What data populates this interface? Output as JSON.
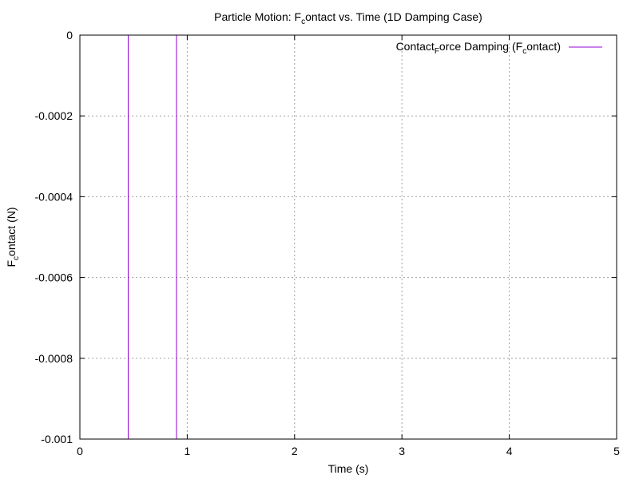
{
  "chart_data": {
    "type": "line",
    "title": {
      "pre": "Particle Motion: F",
      "sub": "c",
      "post": "ontact vs. Time (1D Damping Case)"
    },
    "xlabel": "Time (s)",
    "ylabel": {
      "pre": "F",
      "sub": "c",
      "post": "ontact (N)"
    },
    "xlim": [
      0,
      5
    ],
    "ylim": [
      -0.001,
      0
    ],
    "x_ticks": [
      {
        "value": 0,
        "label": "0"
      },
      {
        "value": 1,
        "label": "1"
      },
      {
        "value": 2,
        "label": "2"
      },
      {
        "value": 3,
        "label": "3"
      },
      {
        "value": 4,
        "label": "4"
      },
      {
        "value": 5,
        "label": "5"
      }
    ],
    "y_ticks": [
      {
        "value": 0,
        "label": "0"
      },
      {
        "value": -0.0002,
        "label": "-0.0002"
      },
      {
        "value": -0.0004,
        "label": "-0.0004"
      },
      {
        "value": -0.0006,
        "label": "-0.0006"
      },
      {
        "value": -0.0008,
        "label": "-0.0008"
      },
      {
        "value": -0.001,
        "label": "-0.001"
      }
    ],
    "grid": true,
    "legend_position": "top-right",
    "series": [
      {
        "legend": {
          "part1": "Contact",
          "sub1": "F",
          "part2": "orce Damping (F",
          "sub2": "c",
          "part3": "ontact)"
        },
        "color": "#9400d3",
        "segments": [
          {
            "x": [
              0.45,
              0.45
            ],
            "y": [
              0,
              -0.001
            ]
          },
          {
            "x": [
              0.9,
              0.9
            ],
            "y": [
              0,
              -0.001
            ]
          }
        ]
      }
    ]
  }
}
